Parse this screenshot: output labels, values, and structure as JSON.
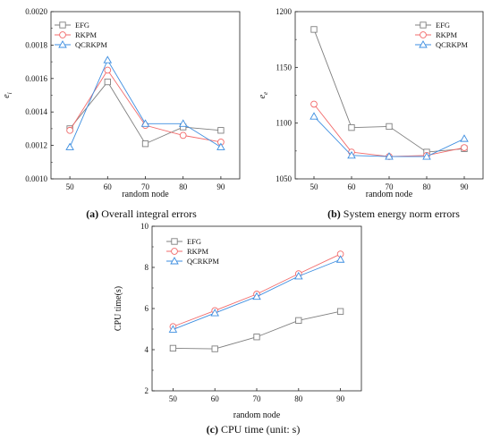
{
  "colors": {
    "EFG": "#7f7f7f",
    "RKPM": "#f26b6b",
    "QCRKPM": "#3d8ee0"
  },
  "marker_icons": {
    "EFG": "square-marker-icon",
    "RKPM": "circle-marker-icon",
    "QCRKPM": "triangle-marker-icon"
  },
  "chart_data": [
    {
      "id": "a",
      "type": "line",
      "caption_letter": "(a)",
      "caption_text": " Overall integral errors",
      "ylabel": "e",
      "ylabel_sub": "i",
      "xlabel": "random node",
      "x": [
        50,
        60,
        70,
        80,
        90
      ],
      "xlim": [
        45,
        95
      ],
      "ylim": [
        0.001,
        0.002
      ],
      "yticks": [
        "0.0010",
        "0.0012",
        "0.0014",
        "0.0016",
        "0.0018",
        "0.0020"
      ],
      "ytick_values": [
        0.001,
        0.0012,
        0.0014,
        0.0016,
        0.0018,
        0.002
      ],
      "legend": "top-left",
      "series": [
        {
          "name": "EFG",
          "values": [
            0.0013,
            0.00158,
            0.00121,
            0.00131,
            0.00129
          ]
        },
        {
          "name": "RKPM",
          "values": [
            0.00129,
            0.00165,
            0.00132,
            0.00126,
            0.00122
          ]
        },
        {
          "name": "QCRKPM",
          "values": [
            0.00119,
            0.00171,
            0.00133,
            0.00133,
            0.00119
          ]
        }
      ]
    },
    {
      "id": "b",
      "type": "line",
      "caption_letter": "(b)",
      "caption_text": " System energy norm errors",
      "ylabel": "e",
      "ylabel_sub": "e",
      "xlabel": "random node",
      "x": [
        50,
        60,
        70,
        80,
        90
      ],
      "xlim": [
        45,
        95
      ],
      "ylim": [
        1050,
        1200
      ],
      "yticks": [
        "1050",
        "1100",
        "1150",
        "1200"
      ],
      "ytick_values": [
        1050,
        1100,
        1150,
        1200
      ],
      "legend": "top-right",
      "series": [
        {
          "name": "EFG",
          "values": [
            1184,
            1096,
            1097,
            1074,
            1077
          ]
        },
        {
          "name": "RKPM",
          "values": [
            1117,
            1074,
            1070,
            1071,
            1078
          ]
        },
        {
          "name": "QCRKPM",
          "values": [
            1106,
            1071,
            1070,
            1070,
            1086
          ]
        }
      ]
    },
    {
      "id": "c",
      "type": "line",
      "caption_letter": "(c)",
      "caption_text": " CPU time (unit: s)",
      "ylabel": "CPU time(s)",
      "ylabel_sub": "",
      "xlabel": "random node",
      "x": [
        50,
        60,
        70,
        80,
        90
      ],
      "xlim": [
        45,
        95
      ],
      "ylim": [
        2,
        10
      ],
      "yticks": [
        "2",
        "4",
        "6",
        "8",
        "10"
      ],
      "ytick_values": [
        2,
        4,
        6,
        8,
        10
      ],
      "legend": "top-left",
      "series": [
        {
          "name": "EFG",
          "values": [
            4.07,
            4.04,
            4.62,
            5.42,
            5.86
          ]
        },
        {
          "name": "RKPM",
          "values": [
            5.12,
            5.9,
            6.7,
            7.69,
            8.65
          ]
        },
        {
          "name": "QCRKPM",
          "values": [
            4.98,
            5.78,
            6.58,
            7.57,
            8.38
          ]
        }
      ]
    }
  ]
}
